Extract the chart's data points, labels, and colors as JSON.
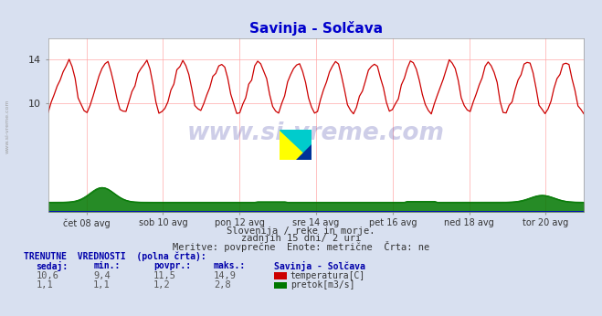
{
  "title": "Savinja - Solčava",
  "bg_color": "#d8e0f0",
  "plot_bg_color": "#ffffff",
  "grid_color": "#ffaaaa",
  "xlabel_ticks": [
    "čet 08 avg",
    "sob 10 avg",
    "pon 12 avg",
    "sre 14 avg",
    "pet 16 avg",
    "ned 18 avg",
    "tor 20 avg"
  ],
  "ylim": [
    0,
    16
  ],
  "y_ticks": [
    10,
    14
  ],
  "temp_color": "#cc0000",
  "flow_color": "#007700",
  "height_color": "#0000cc",
  "subtitle1": "Slovenija / reke in morje.",
  "subtitle2": "zadnjih 15 dni/ 2 uri",
  "subtitle3": "Meritve: povprečne  Enote: metrične  Črta: ne",
  "label_current": "TRENUTNE  VREDNOSTI  (polna črta):",
  "col_sedaj": "sedaj:",
  "col_min": "min.:",
  "col_povpr": "povpr.:",
  "col_maks": "maks.:",
  "col_station": "Savinja - Solčava",
  "row1_vals": [
    "10,6",
    "9,4",
    "11,5",
    "14,9"
  ],
  "row2_vals": [
    "1,1",
    "1,1",
    "1,2",
    "2,8"
  ],
  "legend1": "temperatura[C]",
  "legend2": "pretok[m3/s]",
  "watermark": "www.si-vreme.com",
  "side_text": "www.si-vreme.com"
}
